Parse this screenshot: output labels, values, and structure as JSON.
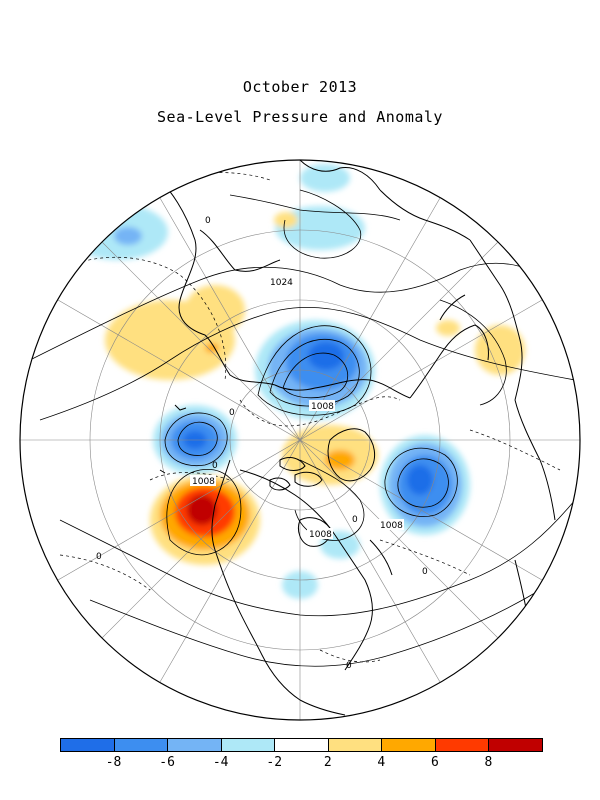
{
  "header": {
    "title": "October 2013",
    "subtitle": "Sea-Level Pressure and Anomaly"
  },
  "map": {
    "projection": "polar-stereographic-north",
    "coastline_color": "#000000",
    "contour_color": "#000000",
    "contour_labels": [
      "1024",
      "1008",
      "1008",
      "1008",
      "1008",
      "0",
      "0",
      "0",
      "0",
      "0",
      "0",
      "0",
      "0"
    ]
  },
  "anomaly_regions": [
    {
      "name": "north-pacific-negative",
      "value": -6,
      "color": "#3d8ef0"
    },
    {
      "name": "gulf-of-alaska-positive",
      "value": 8,
      "color": "#c00000"
    },
    {
      "name": "barents-kara-negative",
      "value": -6,
      "color": "#3d8ef0"
    },
    {
      "name": "north-atlantic-negative",
      "value": -6,
      "color": "#3d8ef0"
    },
    {
      "name": "east-asia-positive",
      "value": 3,
      "color": "#ffe080"
    },
    {
      "name": "canadian-arctic-positive",
      "value": 3,
      "color": "#ffe080"
    },
    {
      "name": "india-negative",
      "value": -3,
      "color": "#aee8f7"
    }
  ],
  "legend": {
    "colors": [
      "#1f6ee8",
      "#3d8ef0",
      "#74b4f5",
      "#aee8f7",
      "#ffffff",
      "#ffe080",
      "#ffa800",
      "#ff3a00",
      "#c00000"
    ],
    "tick_labels": [
      "-8",
      "-6",
      "-4",
      "-2",
      "2",
      "4",
      "6",
      "8"
    ]
  }
}
